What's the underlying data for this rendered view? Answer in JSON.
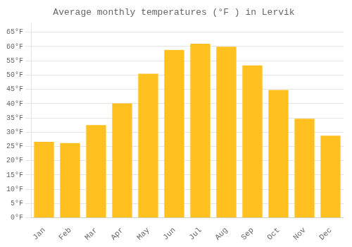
{
  "chart_data": {
    "type": "bar",
    "title": "Average monthly temperatures (°F ) in Lervik",
    "categories": [
      "Jan",
      "Feb",
      "Mar",
      "Apr",
      "May",
      "Jun",
      "Jul",
      "Aug",
      "Sep",
      "Oct",
      "Nov",
      "Dec"
    ],
    "values": [
      26.6,
      26.2,
      32.5,
      40.1,
      50.5,
      58.8,
      61.0,
      59.9,
      53.4,
      44.8,
      34.7,
      28.8
    ],
    "color": "#FFC020",
    "ylim": [
      0,
      68
    ],
    "yticks": [
      {
        "value": 0,
        "label": "0°F"
      },
      {
        "value": 5,
        "label": "5°F"
      },
      {
        "value": 10,
        "label": "10°F"
      },
      {
        "value": 15,
        "label": "15°F"
      },
      {
        "value": 20,
        "label": "20°F"
      },
      {
        "value": 25,
        "label": "25°F"
      },
      {
        "value": 30,
        "label": "30°F"
      },
      {
        "value": 35,
        "label": "35°F"
      },
      {
        "value": 40,
        "label": "40°F"
      },
      {
        "value": 45,
        "label": "45°F"
      },
      {
        "value": 50,
        "label": "50°F"
      },
      {
        "value": 55,
        "label": "55°F"
      },
      {
        "value": 60,
        "label": "60°F"
      },
      {
        "value": 65,
        "label": "65°F"
      }
    ],
    "grid": true
  }
}
